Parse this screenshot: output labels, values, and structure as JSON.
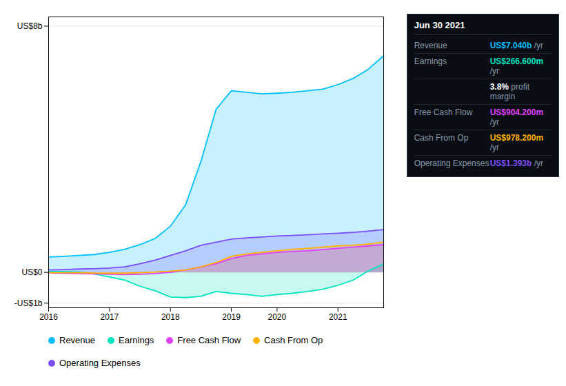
{
  "chart_data": {
    "type": "area",
    "categories": [
      "2016",
      null,
      null,
      null,
      "2017",
      null,
      null,
      null,
      "2018",
      null,
      null,
      null,
      "2019",
      null,
      null,
      "2020",
      null,
      null,
      null,
      "2021",
      null,
      null,
      null
    ],
    "series": [
      {
        "name": "Revenue",
        "color": "#00bfff",
        "values": [
          0.5,
          0.52,
          0.55,
          0.58,
          0.65,
          0.75,
          0.9,
          1.1,
          1.5,
          2.2,
          3.6,
          5.3,
          5.9,
          5.85,
          5.8,
          5.82,
          5.85,
          5.9,
          5.95,
          6.1,
          6.3,
          6.6,
          7.04
        ]
      },
      {
        "name": "Earnings",
        "color": "#00e5c0",
        "values": [
          0.03,
          0.02,
          0.01,
          -0.05,
          -0.15,
          -0.25,
          -0.45,
          -0.6,
          -0.8,
          -0.82,
          -0.78,
          -0.62,
          -0.68,
          -0.72,
          -0.78,
          -0.72,
          -0.68,
          -0.62,
          -0.55,
          -0.42,
          -0.25,
          0.05,
          0.27
        ]
      },
      {
        "name": "Free Cash Flow",
        "color": "#e040fb",
        "values": [
          -0.02,
          -0.03,
          -0.04,
          -0.05,
          -0.06,
          -0.07,
          -0.06,
          -0.04,
          0.0,
          0.08,
          0.18,
          0.28,
          0.45,
          0.55,
          0.6,
          0.65,
          0.68,
          0.7,
          0.74,
          0.78,
          0.82,
          0.86,
          0.9
        ]
      },
      {
        "name": "Cash From Op",
        "color": "#ffb300",
        "values": [
          -0.01,
          -0.01,
          -0.01,
          -0.02,
          -0.03,
          -0.03,
          -0.01,
          0.01,
          0.04,
          0.08,
          0.18,
          0.32,
          0.52,
          0.6,
          0.65,
          0.7,
          0.75,
          0.78,
          0.82,
          0.86,
          0.88,
          0.92,
          0.98
        ]
      },
      {
        "name": "Operating Expenses",
        "color": "#7c4dff",
        "values": [
          0.08,
          0.09,
          0.11,
          0.12,
          0.14,
          0.18,
          0.28,
          0.4,
          0.55,
          0.7,
          0.88,
          0.98,
          1.08,
          1.12,
          1.15,
          1.18,
          1.2,
          1.22,
          1.25,
          1.27,
          1.3,
          1.34,
          1.39
        ]
      }
    ],
    "ylim": [
      -1.15,
      8.3
    ],
    "yticks": [
      {
        "value": -1,
        "label": "-US$1b"
      },
      {
        "value": 0,
        "label": "US$0"
      },
      {
        "value": 8,
        "label": "US$8b"
      }
    ],
    "grid": true,
    "annotations": {
      "header": "Jun 30 2021",
      "rows": [
        {
          "label": "Revenue",
          "value": "US$7.040b",
          "suffix": "/yr",
          "color": "#00bfff"
        },
        {
          "label": "Earnings",
          "value": "US$266.600m",
          "suffix": "/yr",
          "color": "#00e5c0"
        },
        {
          "value": "3.8%",
          "suffix": "profit margin",
          "color": "#ffffff"
        },
        {
          "label": "Free Cash Flow",
          "value": "US$904.200m",
          "suffix": "/yr",
          "color": "#e040fb"
        },
        {
          "label": "Cash From Op",
          "value": "US$978.200m",
          "suffix": "/yr",
          "color": "#ffb300"
        },
        {
          "label": "Operating Expenses",
          "value": "US$1.393b",
          "suffix": "/yr",
          "color": "#7c4dff"
        }
      ]
    }
  }
}
